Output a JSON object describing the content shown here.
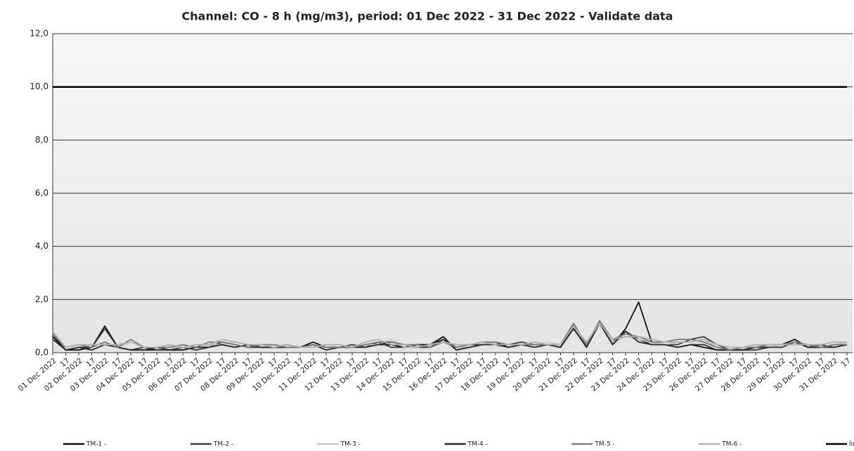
{
  "chart_data": {
    "type": "line",
    "title": "Channel: CO - 8 h (mg/m3), period: 01 Dec 2022 - 31 Dec 2022 - Validate data",
    "categories": [
      "01 Dec 2022",
      "17",
      "02 Dec 2022",
      "17",
      "03 Dec 2022",
      "17",
      "04 Dec 2022",
      "17",
      "05 Dec 2022",
      "17",
      "06 Dec 2022",
      "17",
      "07 Dec 2022",
      "17",
      "08 Dec 2022",
      "17",
      "09 Dec 2022",
      "17",
      "10 Dec 2022",
      "17",
      "11 Dec 2022",
      "17",
      "12 Dec 2022",
      "17",
      "13 Dec 2022",
      "17",
      "14 Dec 2022",
      "17",
      "15 Dec 2022",
      "17",
      "16 Dec 2022",
      "17",
      "17 Dec 2022",
      "17",
      "18 Dec 2022",
      "17",
      "19 Dec 2022",
      "17",
      "20 Dec 2022",
      "17",
      "21 Dec 2022",
      "17",
      "22 Dec 2022",
      "17",
      "23 Dec 2022",
      "17",
      "24 Dec 2022",
      "17",
      "25 Dec 2022",
      "17",
      "26 Dec 2022",
      "17",
      "27 Dec 2022",
      "17",
      "28 Dec 2022",
      "17",
      "29 Dec 2022",
      "17",
      "30 Dec 2022",
      "17",
      "31 Dec 2022",
      "17"
    ],
    "series": [
      {
        "name": "TM-1 -",
        "color": "#111111",
        "values": [
          0.6,
          0.1,
          0.1,
          0.2,
          1.0,
          0.2,
          0.1,
          0.1,
          0.1,
          0.1,
          0.1,
          0.2,
          0.3,
          0.3,
          0.2,
          0.3,
          0.2,
          0.2,
          0.2,
          0.2,
          0.4,
          0.2,
          0.2,
          0.2,
          0.3,
          0.3,
          0.3,
          0.2,
          0.3,
          0.3,
          0.6,
          0.1,
          0.2,
          0.3,
          0.4,
          0.2,
          0.3,
          0.3,
          0.3,
          0.2,
          1.0,
          0.2,
          1.2,
          0.3,
          0.9,
          1.9,
          0.4,
          0.3,
          0.2,
          0.3,
          0.2,
          0.1,
          0.1,
          0.1,
          0.2,
          0.2,
          0.3,
          0.5,
          0.2,
          0.2,
          0.3,
          0.3
        ]
      },
      {
        "name": "TM-2 -",
        "color": "#3a3a3a",
        "values": [
          0.7,
          0.1,
          0.2,
          0.2,
          0.9,
          0.2,
          0.1,
          0.2,
          0.1,
          0.1,
          0.2,
          0.1,
          0.2,
          0.4,
          0.3,
          0.2,
          0.2,
          0.2,
          0.3,
          0.2,
          0.3,
          0.2,
          0.2,
          0.3,
          0.2,
          0.4,
          0.2,
          0.2,
          0.2,
          0.3,
          0.5,
          0.2,
          0.3,
          0.3,
          0.3,
          0.3,
          0.4,
          0.3,
          0.3,
          0.3,
          1.1,
          0.3,
          1.1,
          0.4,
          0.8,
          0.5,
          0.3,
          0.3,
          0.3,
          0.5,
          0.6,
          0.3,
          0.1,
          0.1,
          0.1,
          0.2,
          0.3,
          0.4,
          0.2,
          0.3,
          0.2,
          0.3
        ]
      },
      {
        "name": "TM-3 -",
        "color": "#c8c8c8",
        "values": [
          0.8,
          0.2,
          0.3,
          0.2,
          0.4,
          0.2,
          0.4,
          0.2,
          0.2,
          0.2,
          0.2,
          0.2,
          0.3,
          0.3,
          0.4,
          0.3,
          0.2,
          0.3,
          0.2,
          0.2,
          0.2,
          0.2,
          0.3,
          0.2,
          0.3,
          0.3,
          0.5,
          0.2,
          0.2,
          0.3,
          0.4,
          0.2,
          0.2,
          0.3,
          0.4,
          0.3,
          0.3,
          0.3,
          0.4,
          0.3,
          1.0,
          0.3,
          1.2,
          0.4,
          0.6,
          0.5,
          0.4,
          0.3,
          0.4,
          0.4,
          0.5,
          0.2,
          0.1,
          0.2,
          0.3,
          0.2,
          0.3,
          0.3,
          0.3,
          0.2,
          0.3,
          0.4
        ]
      },
      {
        "name": "TM-4 -",
        "color": "#2a2a2a",
        "values": [
          0.5,
          0.1,
          0.2,
          0.1,
          0.3,
          0.2,
          0.1,
          0.1,
          0.2,
          0.1,
          0.1,
          0.2,
          0.2,
          0.3,
          0.2,
          0.3,
          0.2,
          0.2,
          0.2,
          0.2,
          0.3,
          0.1,
          0.2,
          0.2,
          0.2,
          0.3,
          0.4,
          0.3,
          0.2,
          0.2,
          0.5,
          0.1,
          0.2,
          0.3,
          0.3,
          0.2,
          0.3,
          0.2,
          0.3,
          0.2,
          0.9,
          0.2,
          1.1,
          0.3,
          0.8,
          0.4,
          0.3,
          0.3,
          0.2,
          0.3,
          0.3,
          0.1,
          0.1,
          0.1,
          0.2,
          0.2,
          0.2,
          0.4,
          0.2,
          0.2,
          0.2,
          0.3
        ]
      },
      {
        "name": "TM-5 -",
        "color": "#7a7a7a",
        "values": [
          0.7,
          0.2,
          0.3,
          0.2,
          0.4,
          0.2,
          0.5,
          0.2,
          0.2,
          0.2,
          0.3,
          0.2,
          0.4,
          0.4,
          0.3,
          0.2,
          0.3,
          0.3,
          0.2,
          0.2,
          0.3,
          0.2,
          0.2,
          0.2,
          0.3,
          0.4,
          0.4,
          0.3,
          0.3,
          0.2,
          0.4,
          0.2,
          0.3,
          0.4,
          0.4,
          0.3,
          0.3,
          0.3,
          0.3,
          0.3,
          1.1,
          0.3,
          1.2,
          0.5,
          0.7,
          0.6,
          0.4,
          0.4,
          0.5,
          0.5,
          0.4,
          0.2,
          0.1,
          0.2,
          0.2,
          0.3,
          0.3,
          0.4,
          0.3,
          0.2,
          0.3,
          0.3
        ]
      },
      {
        "name": "TM-6 -",
        "color": "#b0b0b0",
        "values": [
          0.8,
          0.2,
          0.3,
          0.3,
          0.3,
          0.3,
          0.4,
          0.2,
          0.2,
          0.3,
          0.2,
          0.3,
          0.3,
          0.5,
          0.4,
          0.3,
          0.3,
          0.2,
          0.3,
          0.2,
          0.2,
          0.3,
          0.3,
          0.2,
          0.4,
          0.5,
          0.3,
          0.3,
          0.2,
          0.3,
          0.4,
          0.3,
          0.3,
          0.4,
          0.3,
          0.3,
          0.3,
          0.4,
          0.3,
          0.3,
          1.0,
          0.4,
          1.1,
          0.5,
          0.6,
          0.6,
          0.5,
          0.4,
          0.4,
          0.4,
          0.5,
          0.3,
          0.2,
          0.2,
          0.3,
          0.3,
          0.3,
          0.3,
          0.3,
          0.3,
          0.4,
          0.4
        ]
      },
      {
        "name": "limit value",
        "color": "#000000",
        "values": [
          10,
          10,
          10,
          10,
          10,
          10,
          10,
          10,
          10,
          10,
          10,
          10,
          10,
          10,
          10,
          10,
          10,
          10,
          10,
          10,
          10,
          10,
          10,
          10,
          10,
          10,
          10,
          10,
          10,
          10,
          10,
          10,
          10,
          10,
          10,
          10,
          10,
          10,
          10,
          10,
          10,
          10,
          10,
          10,
          10,
          10,
          10,
          10,
          10,
          10,
          10,
          10,
          10,
          10,
          10,
          10,
          10,
          10,
          10,
          10,
          10,
          10
        ]
      }
    ],
    "ylim": [
      0,
      12
    ],
    "yticks": [
      {
        "value": 0,
        "label": "0,0"
      },
      {
        "value": 2,
        "label": "2,0"
      },
      {
        "value": 4,
        "label": "4,0"
      },
      {
        "value": 6,
        "label": "6,0"
      },
      {
        "value": 8,
        "label": "8,0"
      },
      {
        "value": 10,
        "label": "10,0"
      },
      {
        "value": 12,
        "label": "12,0"
      }
    ],
    "grid": true,
    "legend": "bottom"
  }
}
